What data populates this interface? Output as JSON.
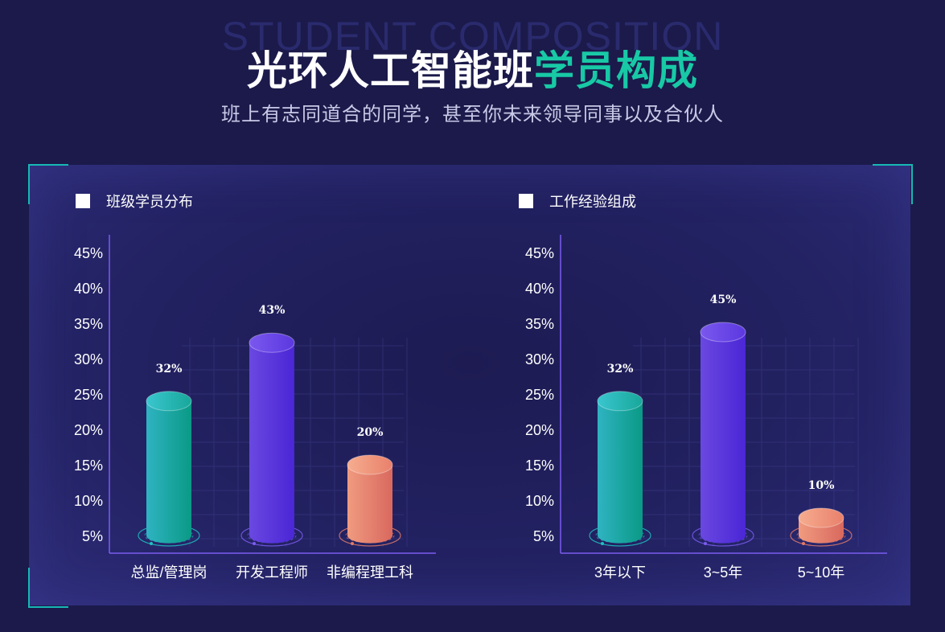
{
  "header": {
    "bg_title": "STUDENT COMPOSITION",
    "title_main": "光环人工智能班",
    "title_highlight": "学员构成",
    "subtitle": "班上有志同道合的同学，甚至你未来领导同事以及合伙人"
  },
  "colors": {
    "accent": "#18c9a6",
    "teal": "#14a39a",
    "purple": "#5a35d6",
    "salmon": "#e88a72",
    "axis": "#7a5cf0"
  },
  "chart_data": [
    {
      "type": "bar",
      "title": "班级学员分布",
      "categories": [
        "总监/管理岗",
        "开发工程师",
        "非编程理工科"
      ],
      "values": [
        32,
        43,
        20
      ],
      "value_labels": [
        "32%",
        "43%",
        "20%"
      ],
      "bar_colors": [
        "teal",
        "purple",
        "salmon"
      ],
      "yticks": [
        "5%",
        "10%",
        "15%",
        "20%",
        "25%",
        "30%",
        "35%",
        "40%",
        "45%"
      ],
      "ylim": [
        0,
        45
      ]
    },
    {
      "type": "bar",
      "title": "工作经验组成",
      "categories": [
        "3年以下",
        "3~5年",
        "5~10年"
      ],
      "values": [
        32,
        45,
        10
      ],
      "value_labels": [
        "32%",
        "45%",
        "10%"
      ],
      "bar_colors": [
        "teal",
        "purple",
        "salmon"
      ],
      "yticks": [
        "5%",
        "10%",
        "15%",
        "20%",
        "25%",
        "30%",
        "35%",
        "40%",
        "45%"
      ],
      "ylim": [
        0,
        45
      ]
    }
  ]
}
